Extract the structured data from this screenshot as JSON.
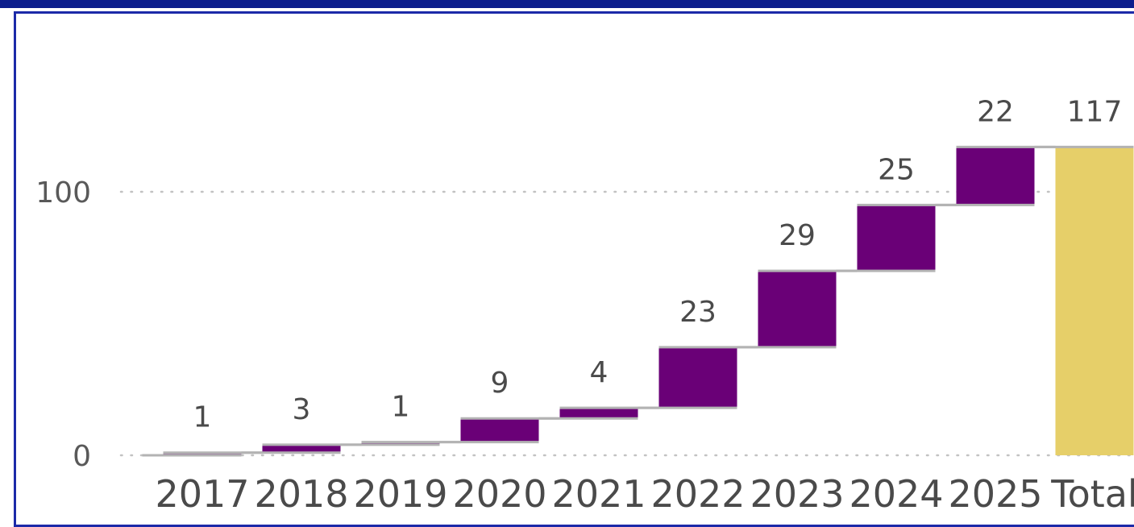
{
  "chart_data": {
    "type": "waterfall",
    "categories": [
      "2017",
      "2018",
      "2019",
      "2020",
      "2021",
      "2022",
      "2023",
      "2024",
      "2025",
      "Total"
    ],
    "values": [
      1,
      3,
      1,
      9,
      4,
      23,
      29,
      25,
      22,
      117
    ],
    "data_labels": [
      "1",
      "3",
      "1",
      "9",
      "4",
      "23",
      "29",
      "25",
      "22",
      "117"
    ],
    "y_ticks": [
      0,
      100
    ],
    "y_tick_labels": [
      "0",
      "100"
    ],
    "ylim": [
      0,
      117
    ],
    "grid": "dotted horizontal",
    "title": "",
    "xlabel": "",
    "ylabel": ""
  },
  "colors": {
    "increase": "#6a0077",
    "total": "#e6cf69",
    "connector": "#b3b3b3",
    "gridline": "#c2c2c2",
    "frame": "#1c2aa8",
    "topbar": "#0b1d8c"
  }
}
